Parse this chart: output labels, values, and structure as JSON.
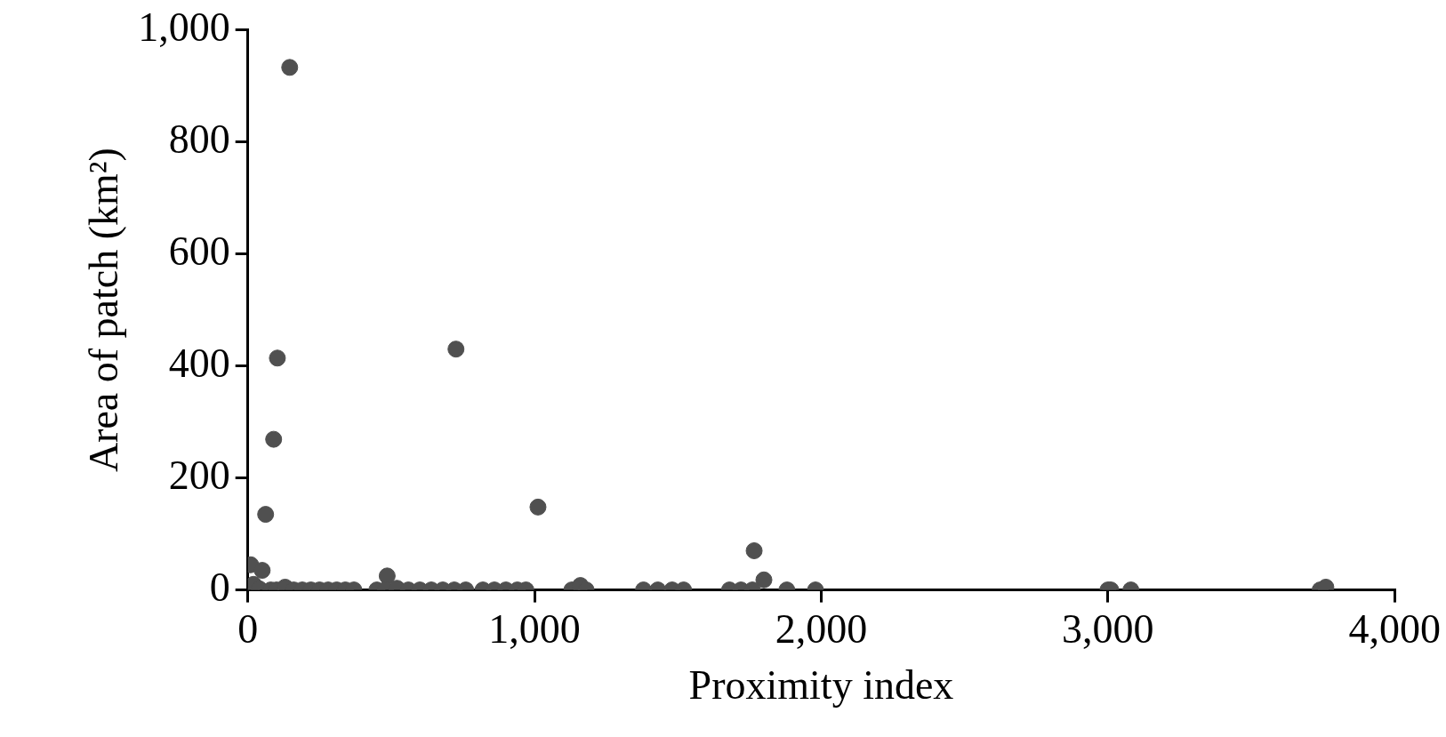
{
  "chart_data": {
    "type": "scatter",
    "xlabel": "Proximity index",
    "ylabel": "Area of patch (km²)",
    "x": [
      146,
      103,
      90,
      62,
      726,
      1012,
      1766,
      10,
      50,
      486,
      1800,
      20,
      40,
      80,
      100,
      130,
      160,
      190,
      220,
      250,
      280,
      310,
      340,
      370,
      450,
      480,
      520,
      560,
      600,
      640,
      680,
      720,
      760,
      820,
      860,
      900,
      940,
      970,
      1130,
      1160,
      1180,
      1380,
      1430,
      1480,
      1520,
      1680,
      1720,
      1760,
      1880,
      1980,
      3000,
      3010,
      3080,
      3740,
      3760
    ],
    "series": [
      {
        "color": "#505050",
        "values": [
          933,
          414,
          269,
          135,
          430,
          148,
          70,
          45,
          35,
          25,
          18,
          10,
          2,
          0,
          0,
          5,
          0,
          0,
          0,
          0,
          0,
          0,
          0,
          0,
          0,
          0,
          3,
          0,
          0,
          0,
          0,
          0,
          0,
          0,
          0,
          0,
          0,
          0,
          0,
          8,
          0,
          0,
          0,
          0,
          0,
          0,
          0,
          0,
          0,
          0,
          0,
          0,
          0,
          0,
          5
        ]
      }
    ],
    "xlim": [
      0,
      4000
    ],
    "xticks": [
      0,
      {
        "value": 1000,
        "label": "1,000"
      },
      {
        "value": 2000,
        "label": "2,000"
      },
      {
        "value": 3000,
        "label": "3,000"
      },
      {
        "value": 4000,
        "label": "4,000"
      }
    ],
    "ylim": [
      0,
      1000
    ],
    "yticks": [
      0,
      200,
      400,
      600,
      800,
      {
        "value": 1000,
        "label": "1,000"
      }
    ],
    "grid": false,
    "legend": false,
    "marker": "circle"
  }
}
